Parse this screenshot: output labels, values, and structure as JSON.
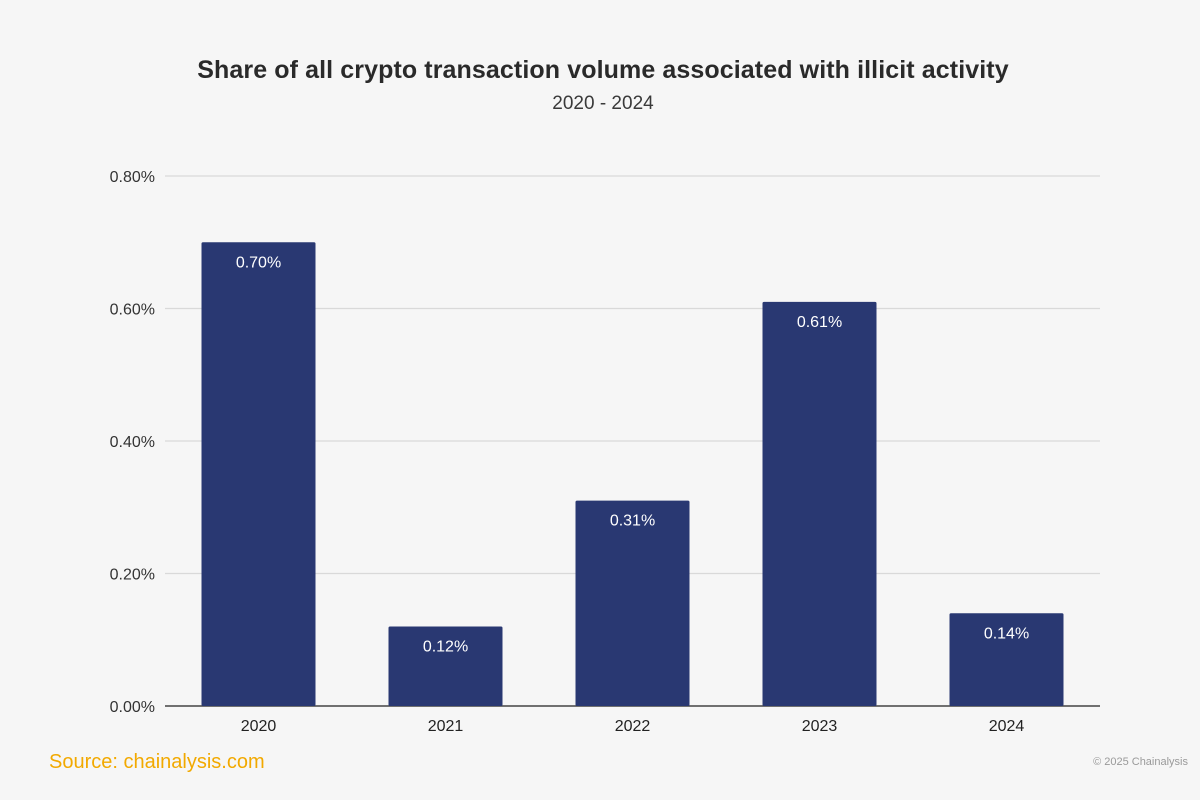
{
  "chart_data": {
    "type": "bar",
    "title": "Share of all crypto transaction volume associated with illicit activity",
    "subtitle": "2020 - 2024",
    "categories": [
      "2020",
      "2021",
      "2022",
      "2023",
      "2024"
    ],
    "values": [
      0.7,
      0.12,
      0.31,
      0.61,
      0.14
    ],
    "data_labels": [
      "0.70%",
      "0.12%",
      "0.31%",
      "0.61%",
      "0.14%"
    ],
    "ylim": [
      0,
      0.8
    ],
    "yticks": [
      0,
      0.2,
      0.4,
      0.6,
      0.8
    ],
    "ytick_labels": [
      "0.00%",
      "0.20%",
      "0.40%",
      "0.60%",
      "0.80%"
    ],
    "xlabel": "",
    "ylabel": "",
    "grid": true,
    "legend": "none",
    "bar_color": "#293872"
  },
  "footer": {
    "source": "Source: chainalysis.com",
    "copyright": "© 2025 Chainalysis"
  },
  "colors": {
    "background": "#f6f6f6",
    "grid": "#d9d9d9",
    "axis": "#444444",
    "source_text": "#f2a900"
  }
}
